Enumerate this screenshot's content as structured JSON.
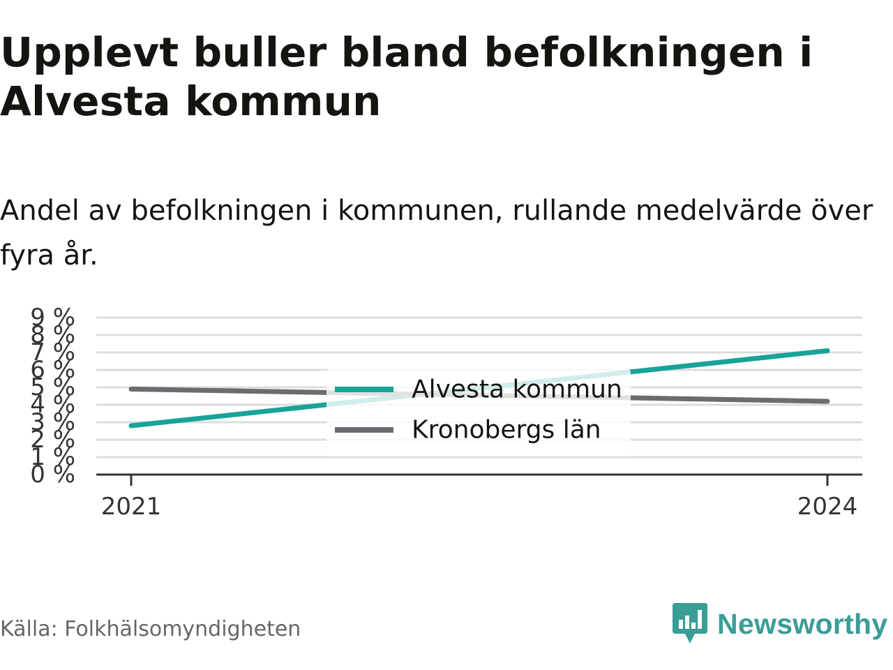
{
  "title": "Upplevt buller bland befolkningen i Alvesta kommun",
  "subtitle": "Andel av befolkningen i kommunen, rullande medelvärde över fyra år.",
  "source": "Källa: Folkhälsomyndigheten",
  "brand": {
    "name": "Newsworthy",
    "logo_icon": "bar-chart-speech-bubble-icon",
    "color": "#3a9d96"
  },
  "chart_data": {
    "type": "line",
    "x": [
      "2021",
      "2024"
    ],
    "x_values": [
      2021,
      2024
    ],
    "ylim": [
      0,
      9
    ],
    "ytick_values": [
      0,
      1,
      2,
      3,
      4,
      5,
      6,
      7,
      8,
      9
    ],
    "yticks": [
      "0 %",
      "1 %",
      "2 %",
      "3 %",
      "4 %",
      "5 %",
      "6 %",
      "7 %",
      "8 %",
      "9 %"
    ],
    "grid": true,
    "legend_placement": "center",
    "series": [
      {
        "name": "Alvesta kommun",
        "color": "#17a399",
        "values": [
          2.8,
          7.1
        ]
      },
      {
        "name": "Kronobergs län",
        "color": "#6b6b70",
        "values": [
          4.9,
          4.2
        ]
      }
    ]
  }
}
